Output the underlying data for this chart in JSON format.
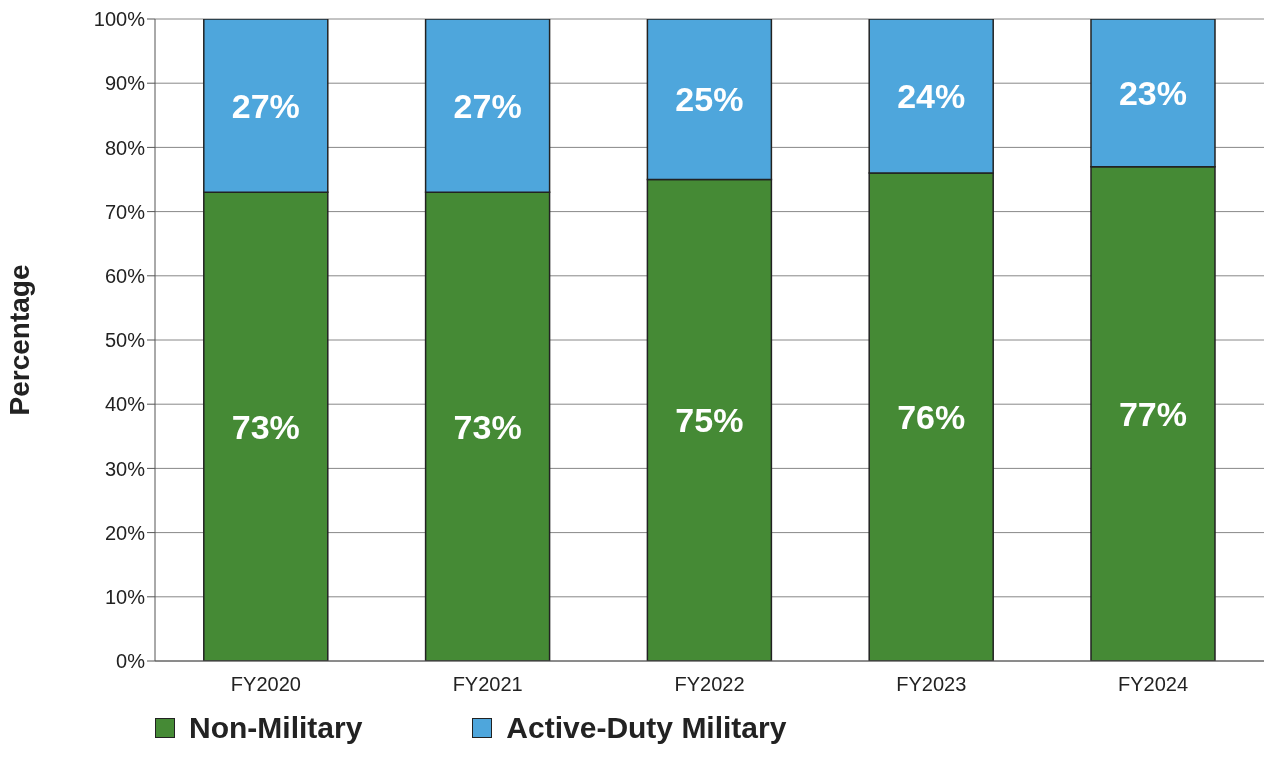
{
  "chart_data": {
    "type": "bar",
    "stacked": true,
    "ylabel": "Percentage",
    "categories": [
      "FY2020",
      "FY2021",
      "FY2022",
      "FY2023",
      "FY2024"
    ],
    "series": [
      {
        "name": "Non-Military",
        "color": "#458a35",
        "values": [
          73,
          73,
          75,
          76,
          77
        ],
        "value_labels": [
          "73%",
          "73%",
          "75%",
          "76%",
          "77%"
        ]
      },
      {
        "name": "Active-Duty Military",
        "color": "#4ea6dc",
        "values": [
          27,
          27,
          25,
          24,
          23
        ],
        "value_labels": [
          "27%",
          "27%",
          "25%",
          "24%",
          "23%"
        ]
      }
    ],
    "ylim": [
      0,
      100
    ],
    "yticks": [
      {
        "value": 0,
        "label": "0%"
      },
      {
        "value": 10,
        "label": "10%"
      },
      {
        "value": 20,
        "label": "20%"
      },
      {
        "value": 30,
        "label": "30%"
      },
      {
        "value": 40,
        "label": "40%"
      },
      {
        "value": 50,
        "label": "50%"
      },
      {
        "value": 60,
        "label": "60%"
      },
      {
        "value": 70,
        "label": "70%"
      },
      {
        "value": 80,
        "label": "80%"
      },
      {
        "value": 90,
        "label": "90%"
      },
      {
        "value": 100,
        "label": "100%"
      }
    ],
    "grid": "y",
    "legend": "bottom left"
  }
}
